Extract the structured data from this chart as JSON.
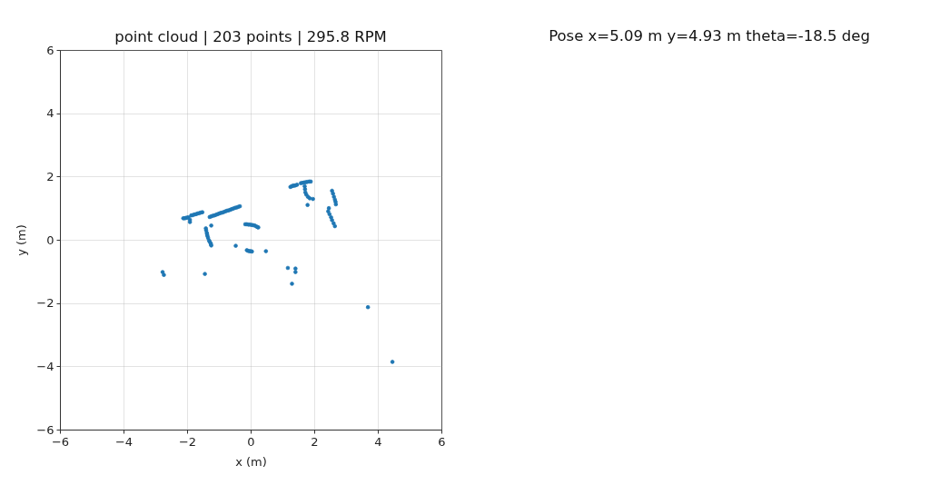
{
  "chart_data": [
    {
      "type": "scatter",
      "title": "point cloud | 203 points | 295.8 RPM",
      "xlabel": "x (m)",
      "ylabel": "y (m)",
      "xlim": [
        -6,
        6
      ],
      "ylim": [
        -6,
        6
      ],
      "xticks": [
        {
          "value": -6,
          "label": "−6"
        },
        {
          "value": -4,
          "label": "−4"
        },
        {
          "value": -2,
          "label": "−2"
        },
        0,
        2,
        4,
        6
      ],
      "yticks": [
        {
          "value": -6,
          "label": "−6"
        },
        {
          "value": -4,
          "label": "−4"
        },
        {
          "value": -2,
          "label": "−2"
        },
        0,
        2,
        4,
        6
      ],
      "grid": true,
      "marker": "circle",
      "series": [
        {
          "color": "#1f77b4",
          "x": [
            -2.12,
            -2.08,
            -2.04,
            -2.0,
            -1.96,
            -1.91,
            -1.91,
            -1.87,
            -1.82,
            -1.77,
            -1.72,
            -1.67,
            -1.62,
            -1.57,
            -1.52,
            -1.29,
            -1.24,
            -1.19,
            -1.14,
            -1.09,
            -1.04,
            -0.99,
            -0.94,
            -0.89,
            -0.84,
            -0.79,
            -0.74,
            -0.69,
            -0.64,
            -0.59,
            -0.54,
            -0.49,
            -0.44,
            -0.39,
            -0.34,
            -1.24,
            -1.41,
            -1.4,
            -1.38,
            -1.37,
            -1.36,
            -1.34,
            -1.31,
            -1.29,
            -1.26,
            -1.25,
            -1.24,
            -0.47,
            -0.17,
            -0.12,
            -0.07,
            -0.02,
            0.03,
            0.08,
            0.13,
            0.18,
            0.22,
            0.24,
            -0.12,
            -0.08,
            -0.04,
            0.0,
            0.04,
            0.48,
            -2.77,
            -2.73,
            -1.44,
            1.25,
            1.29,
            1.33,
            1.37,
            1.41,
            1.46,
            1.58,
            1.63,
            1.68,
            1.73,
            1.78,
            1.84,
            1.89,
            1.7,
            1.71,
            1.72,
            1.75,
            1.8,
            1.86,
            1.96,
            1.79,
            2.56,
            2.59,
            2.62,
            2.65,
            2.67,
            2.68,
            2.46,
            2.44,
            2.48,
            2.53,
            2.56,
            2.61,
            2.65,
            1.17,
            1.41,
            1.41,
            1.3,
            3.69,
            4.46
          ],
          "values": [
            0.68,
            0.68,
            0.69,
            0.7,
            0.71,
            0.63,
            0.56,
            0.77,
            0.78,
            0.8,
            0.81,
            0.83,
            0.84,
            0.86,
            0.87,
            0.72,
            0.74,
            0.76,
            0.77,
            0.79,
            0.81,
            0.83,
            0.85,
            0.86,
            0.88,
            0.9,
            0.92,
            0.93,
            0.95,
            0.97,
            0.99,
            1.01,
            1.02,
            1.04,
            1.06,
            0.45,
            0.36,
            0.3,
            0.22,
            0.17,
            0.12,
            0.06,
            -0.02,
            -0.06,
            -0.11,
            -0.14,
            -0.18,
            -0.19,
            0.49,
            0.49,
            0.48,
            0.48,
            0.47,
            0.46,
            0.45,
            0.42,
            0.4,
            0.39,
            -0.33,
            -0.35,
            -0.36,
            -0.36,
            -0.37,
            -0.36,
            -1.02,
            -1.11,
            -1.08,
            1.67,
            1.69,
            1.71,
            1.71,
            1.72,
            1.74,
            1.79,
            1.8,
            1.81,
            1.82,
            1.83,
            1.84,
            1.84,
            1.69,
            1.6,
            1.5,
            1.43,
            1.36,
            1.31,
            1.29,
            1.1,
            1.55,
            1.46,
            1.36,
            1.27,
            1.2,
            1.12,
            1.0,
            0.9,
            0.81,
            0.71,
            0.62,
            0.52,
            0.43,
            -0.89,
            -0.91,
            -1.02,
            -1.39,
            -2.13,
            -3.86
          ]
        }
      ]
    },
    {
      "type": "other",
      "title": "Pose x=5.09 m y=4.93 m theta=-18.5 deg"
    }
  ]
}
